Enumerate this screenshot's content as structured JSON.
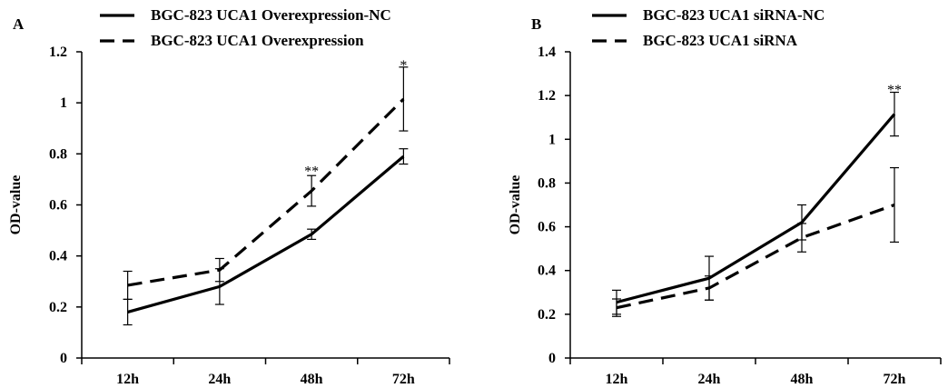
{
  "chart_data": [
    {
      "type": "line",
      "panel_label": "A",
      "categories": [
        "12h",
        "24h",
        "48h",
        "72h"
      ],
      "ylabel": "OD-value",
      "xlabel": "",
      "ylim": [
        0,
        1.2
      ],
      "yticks": [
        "0",
        "0.2",
        "0.4",
        "0.6",
        "0.8",
        "1",
        "1.2"
      ],
      "grid": false,
      "legend_position": "top",
      "series": [
        {
          "name": "BGC-823 UCA1 Overexpression-NC",
          "style": "solid",
          "values": [
            0.18,
            0.28,
            0.485,
            0.79
          ],
          "errors": [
            0.05,
            0.07,
            0.02,
            0.03
          ]
        },
        {
          "name": "BGC-823 UCA1 Overexpression",
          "style": "dashed",
          "values": [
            0.285,
            0.345,
            0.655,
            1.015
          ],
          "errors": [
            0.055,
            0.045,
            0.06,
            0.125
          ]
        }
      ],
      "annotations": [
        {
          "category": "48h",
          "text": "**",
          "y": 0.735
        },
        {
          "category": "72h",
          "text": "*",
          "y": 1.15
        }
      ]
    },
    {
      "type": "line",
      "panel_label": "B",
      "categories": [
        "12h",
        "24h",
        "48h",
        "72h"
      ],
      "ylabel": "OD-value",
      "xlabel": "",
      "ylim": [
        0,
        1.4
      ],
      "yticks": [
        "0",
        "0.2",
        "0.4",
        "0.6",
        "0.8",
        "1",
        "1.2",
        "1.4"
      ],
      "grid": false,
      "legend_position": "top",
      "series": [
        {
          "name": "BGC-823 UCA1 siRNA-NC",
          "style": "solid",
          "values": [
            0.255,
            0.365,
            0.62,
            1.115
          ],
          "errors": [
            0.055,
            0.1,
            0.08,
            0.1
          ]
        },
        {
          "name": "BGC-823 UCA1 siRNA",
          "style": "dashed",
          "values": [
            0.23,
            0.32,
            0.55,
            0.7
          ],
          "errors": [
            0.04,
            0.055,
            0.065,
            0.17
          ]
        }
      ],
      "annotations": [
        {
          "category": "72h",
          "text": "**",
          "y": 1.23
        }
      ]
    }
  ]
}
